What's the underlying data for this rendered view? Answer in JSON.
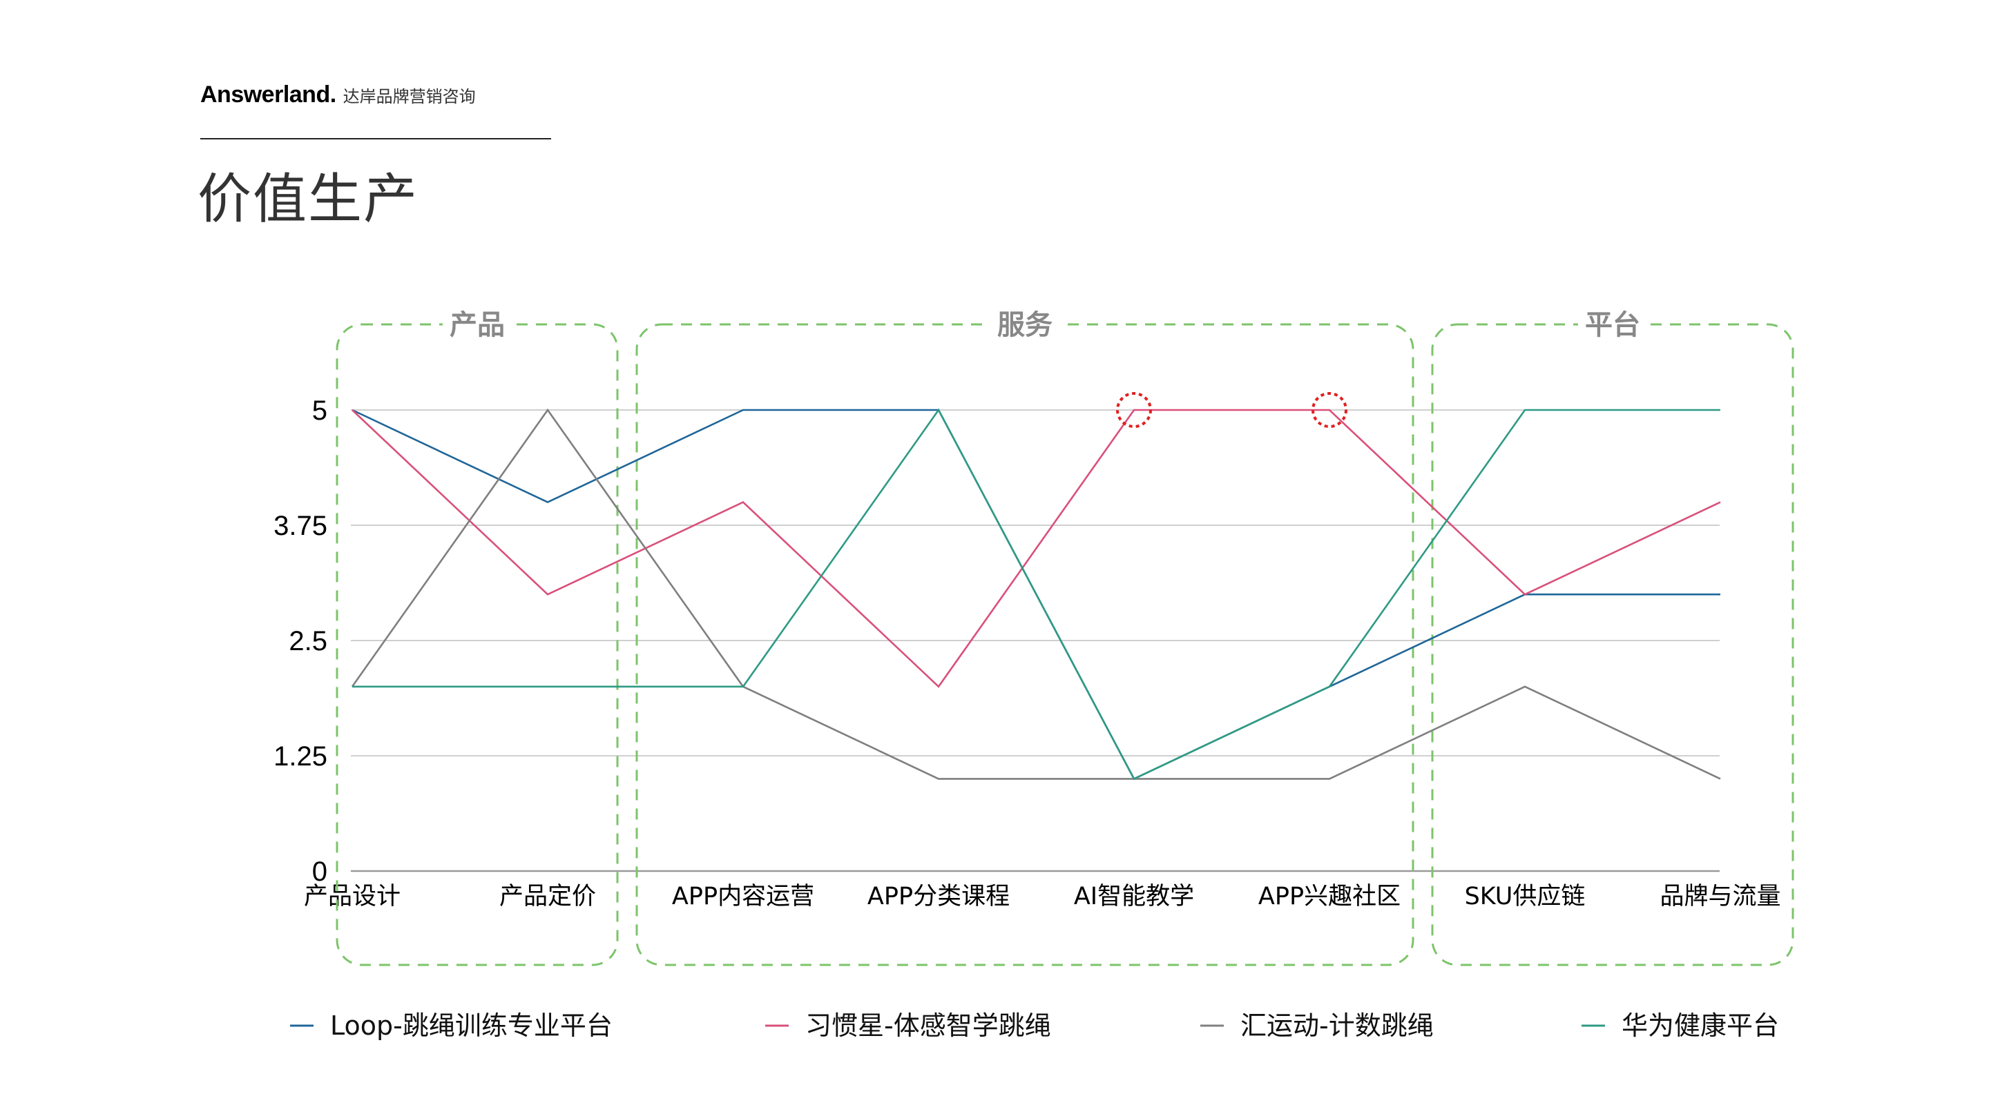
{
  "header": {
    "brand_name": "Answerland.",
    "brand_sub": "达岸品牌营销咨询",
    "page_title": "价值生产"
  },
  "chart_data": {
    "type": "line",
    "categories": [
      "产品设计",
      "产品定价",
      "APP内容运营",
      "APP分类课程",
      "AI智能教学",
      "APP兴趣社区",
      "SKU供应链",
      "品牌与流量"
    ],
    "ylim": [
      0,
      5
    ],
    "yticks": [
      0,
      1.25,
      2.5,
      3.75,
      5
    ],
    "ytick_labels": [
      "0",
      "1.25",
      "2.5",
      "3.75",
      "5"
    ],
    "grid": true,
    "legend_position": "bottom",
    "series": [
      {
        "name": "Loop-跳绳训练专业平台",
        "color": "#1f6699",
        "values": [
          5,
          4,
          5,
          5,
          1,
          2,
          3,
          3
        ]
      },
      {
        "name": "习惯星-体感智学跳绳",
        "color": "#d9507a",
        "values": [
          5,
          3,
          4,
          2,
          5,
          5,
          3,
          4
        ]
      },
      {
        "name": "汇运动-计数跳绳",
        "color": "#7f7f7f",
        "values": [
          2,
          5,
          2,
          1,
          1,
          1,
          2,
          1
        ]
      },
      {
        "name": "华为健康平台",
        "color": "#2f9a84",
        "values": [
          2,
          2,
          2,
          5,
          1,
          2,
          5,
          5
        ]
      }
    ],
    "groups": [
      {
        "label": "产品",
        "from": 0,
        "to": 1
      },
      {
        "label": "服务",
        "from": 2,
        "to": 5
      },
      {
        "label": "平台",
        "from": 6,
        "to": 7
      }
    ],
    "highlights": [
      {
        "series": 1,
        "index": 4
      },
      {
        "series": 1,
        "index": 5
      }
    ],
    "group_border_color": "#7cc46a",
    "highlight_color": "#e02020"
  }
}
